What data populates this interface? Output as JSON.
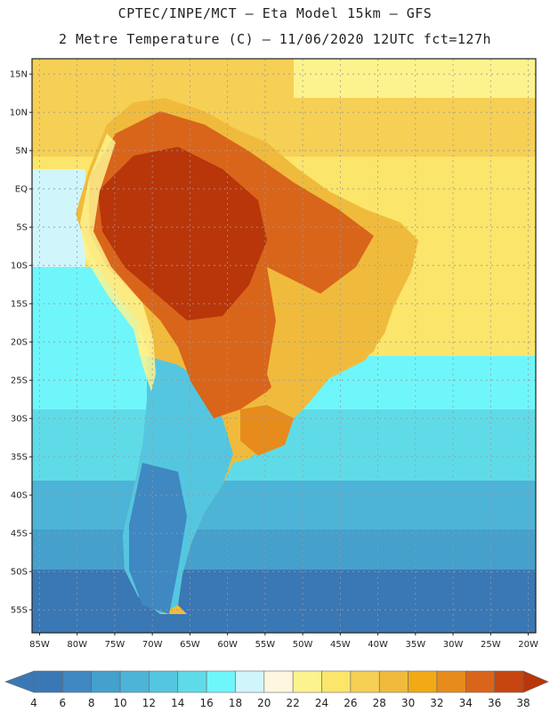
{
  "header": {
    "line1": "CPTEC/INPE/MCT –  Eta Model 15km – GFS",
    "line2": "2 Metre Temperature (C) – 11/06/2020 12UTC fct=127h"
  },
  "map": {
    "lat_labels": [
      "15N",
      "10N",
      "5N",
      "EQ",
      "5S",
      "10S",
      "15S",
      "20S",
      "25S",
      "30S",
      "35S",
      "40S",
      "45S",
      "50S",
      "55S"
    ],
    "lon_labels": [
      "85W",
      "80W",
      "75W",
      "70W",
      "65W",
      "60W",
      "55W",
      "50W",
      "45W",
      "40W",
      "35W",
      "30W",
      "25W",
      "20W"
    ],
    "lat_values": [
      15,
      10,
      5,
      0,
      -5,
      -10,
      -15,
      -20,
      -25,
      -30,
      -35,
      -40,
      -45,
      -50,
      -55
    ],
    "lon_values": [
      -85,
      -80,
      -75,
      -70,
      -65,
      -60,
      -55,
      -50,
      -45,
      -40,
      -35,
      -30,
      -25,
      -20
    ],
    "lat_range": [
      -58,
      17
    ],
    "lon_range": [
      -86,
      -19
    ]
  },
  "colorbar": {
    "labels": [
      "4",
      "6",
      "8",
      "10",
      "12",
      "14",
      "16",
      "18",
      "20",
      "22",
      "24",
      "26",
      "28",
      "30",
      "32",
      "34",
      "36",
      "38"
    ],
    "colors": [
      "#3a77b5",
      "#3f88c2",
      "#45a0cc",
      "#4db4d8",
      "#55c6e0",
      "#5fdbe8",
      "#6ff6fb",
      "#d0f6fc",
      "#fff6df",
      "#fdf38e",
      "#fbe56a",
      "#f6cf55",
      "#f0bb3c",
      "#f1a915",
      "#e68b1c",
      "#d9651a",
      "#c74510"
    ],
    "low_color": "#3a77b5",
    "high_color": "#b8360a"
  }
}
